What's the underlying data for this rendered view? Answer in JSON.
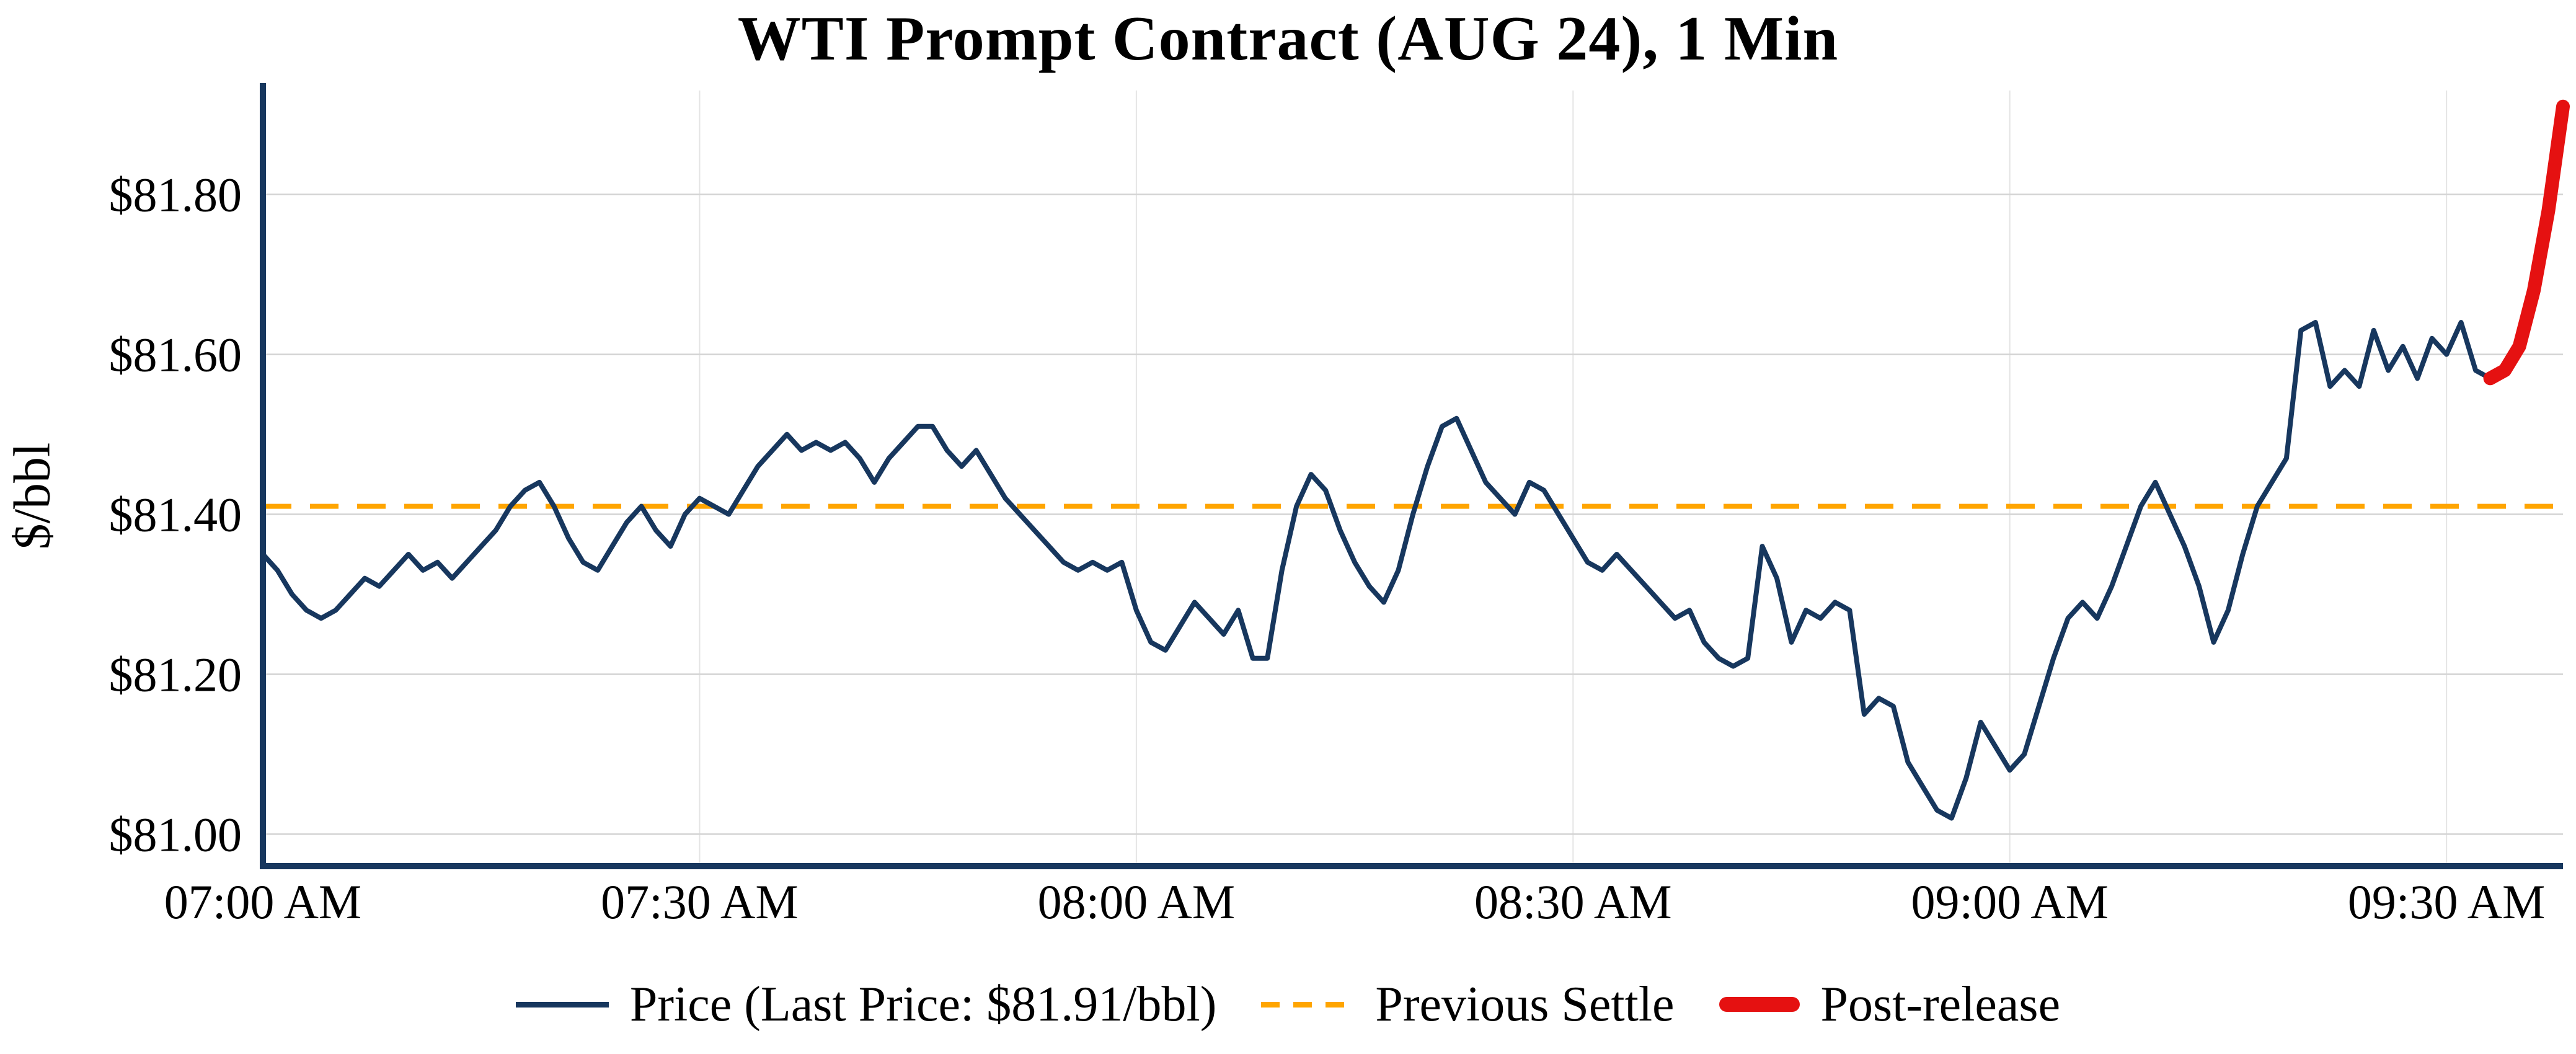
{
  "title": "WTI Prompt Contract (AUG 24), 1 Min",
  "y_axis_label": "$/bbl",
  "legend": {
    "price_label": "Price (Last Price: $81.91/bbl)",
    "settle_label": "Previous Settle",
    "post_release_label": "Post-release"
  },
  "colors": {
    "price": "#17375e",
    "settle": "#FFA500",
    "post_release": "#E51111",
    "grid_h": "#d4d4d4",
    "grid_v": "#e4e4e4",
    "axis": "#17375e",
    "text": "#000000",
    "background": "#ffffff"
  },
  "chart_data": {
    "type": "line",
    "title": "WTI Prompt Contract (AUG 24), 1 Min",
    "xlabel": "",
    "ylabel": "$/bbl",
    "x_unit": "minutes since 07:00 AM",
    "interval_minutes": 1,
    "x_total_minutes": 158,
    "x_tick_minutes": [
      0,
      30,
      60,
      90,
      120,
      150
    ],
    "x_tick_labels": [
      "07:00 AM",
      "07:30 AM",
      "08:00 AM",
      "08:30 AM",
      "09:00 AM",
      "09:30 AM"
    ],
    "y_ticks": [
      81.0,
      81.2,
      81.4,
      81.6,
      81.8
    ],
    "y_tick_labels": [
      "$81.00",
      "$81.20",
      "$81.40",
      "$81.60",
      "$81.80"
    ],
    "ylim": [
      80.96,
      81.93
    ],
    "grid": true,
    "legend_position": "bottom",
    "previous_settle": 81.41,
    "last_price": 81.91,
    "series": [
      {
        "name": "Price",
        "color_key": "price",
        "stroke_width": 8,
        "start_minute": 0,
        "values": [
          81.35,
          81.33,
          81.3,
          81.28,
          81.27,
          81.28,
          81.3,
          81.32,
          81.31,
          81.33,
          81.35,
          81.33,
          81.34,
          81.32,
          81.34,
          81.36,
          81.38,
          81.41,
          81.43,
          81.44,
          81.41,
          81.37,
          81.34,
          81.33,
          81.36,
          81.39,
          81.41,
          81.38,
          81.36,
          81.4,
          81.42,
          81.41,
          81.4,
          81.43,
          81.46,
          81.48,
          81.5,
          81.48,
          81.49,
          81.48,
          81.49,
          81.47,
          81.44,
          81.47,
          81.49,
          81.51,
          81.51,
          81.48,
          81.46,
          81.48,
          81.45,
          81.42,
          81.4,
          81.38,
          81.36,
          81.34,
          81.33,
          81.34,
          81.33,
          81.34,
          81.28,
          81.24,
          81.23,
          81.26,
          81.29,
          81.27,
          81.25,
          81.28,
          81.22,
          81.22,
          81.33,
          81.41,
          81.45,
          81.43,
          81.38,
          81.34,
          81.31,
          81.29,
          81.33,
          81.4,
          81.46,
          81.51,
          81.52,
          81.48,
          81.44,
          81.42,
          81.4,
          81.44,
          81.43,
          81.4,
          81.37,
          81.34,
          81.33,
          81.35,
          81.33,
          81.31,
          81.29,
          81.27,
          81.28,
          81.24,
          81.22,
          81.21,
          81.22,
          81.36,
          81.32,
          81.24,
          81.28,
          81.27,
          81.29,
          81.28,
          81.15,
          81.17,
          81.16,
          81.09,
          81.06,
          81.03,
          81.02,
          81.07,
          81.14,
          81.11,
          81.08,
          81.1,
          81.16,
          81.22,
          81.27,
          81.29,
          81.27,
          81.31,
          81.36,
          81.41,
          81.44,
          81.4,
          81.36,
          81.31,
          81.24,
          81.28,
          81.35,
          81.41,
          81.44,
          81.47,
          81.63,
          81.64,
          81.56,
          81.58,
          81.56,
          81.63,
          81.58,
          81.61,
          81.57,
          81.62,
          81.6,
          81.64,
          81.58,
          81.57
        ]
      },
      {
        "name": "Post-release",
        "color_key": "post_release",
        "stroke_width": 22,
        "start_minute": 153,
        "values": [
          81.57,
          81.58,
          81.61,
          81.68,
          81.78,
          81.91
        ]
      }
    ]
  }
}
